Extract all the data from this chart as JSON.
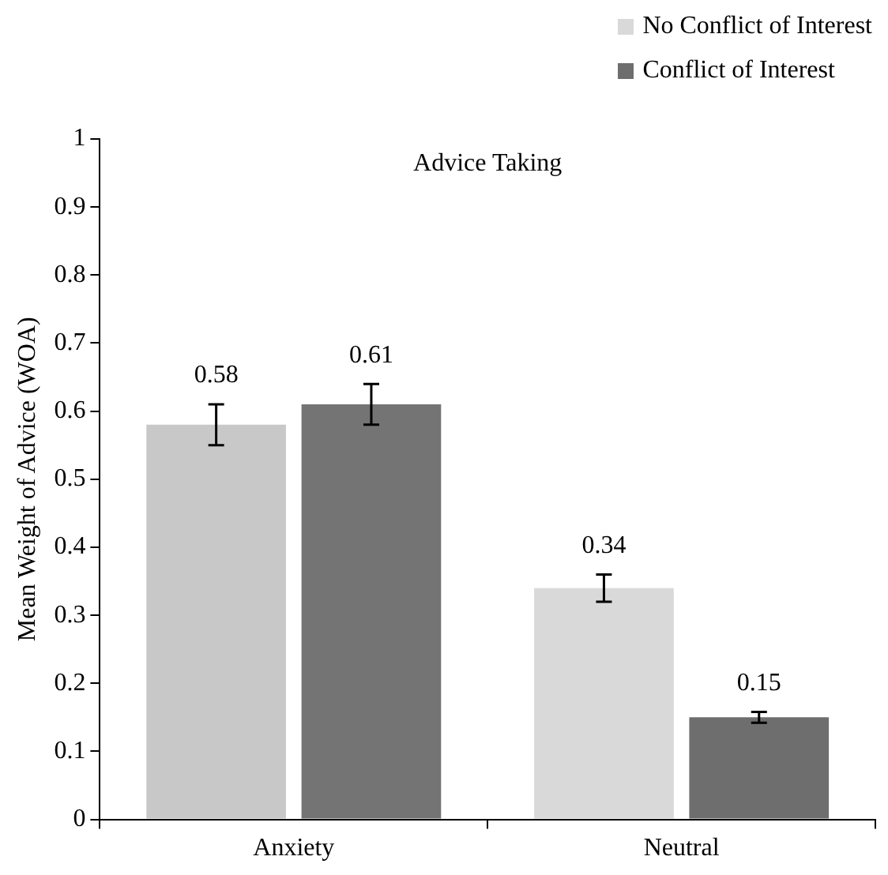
{
  "chart_data": {
    "type": "bar",
    "title": "Advice Taking",
    "ylabel": "Mean Weight of Advice (WOA)",
    "categories": [
      "Anxiety",
      "Neutral"
    ],
    "series": [
      {
        "name": "No Conflict of Interest",
        "color": "#d9d9d9",
        "colors": [
          "#c8c8c8",
          "#d9d9d9"
        ],
        "values": [
          0.58,
          0.34
        ],
        "errors": [
          0.03,
          0.02
        ]
      },
      {
        "name": "Conflict of Interest",
        "color": "#6e6e6e",
        "colors": [
          "#747474",
          "#6e6e6e"
        ],
        "values": [
          0.61,
          0.15
        ],
        "errors": [
          0.03,
          0.008
        ]
      }
    ],
    "ylim": [
      0,
      1
    ],
    "yticks": [
      0,
      0.1,
      0.2,
      0.3,
      0.4,
      0.5,
      0.6,
      0.7,
      0.8,
      0.9,
      1
    ],
    "data_labels": true,
    "legend": "top right",
    "grid": false
  }
}
